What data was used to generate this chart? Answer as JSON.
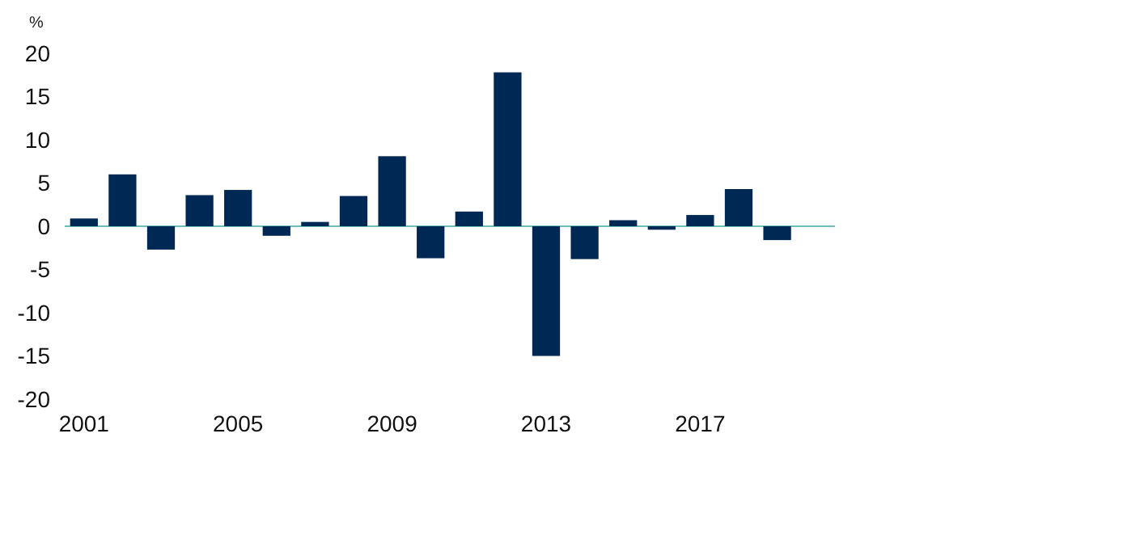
{
  "chart_data": {
    "type": "bar",
    "ylabel": "%",
    "categories": [
      "2001",
      null,
      null,
      null,
      "2005",
      null,
      null,
      null,
      "2009",
      null,
      null,
      null,
      "2013",
      null,
      null,
      null,
      "2017",
      null,
      null,
      null
    ],
    "values": [
      0.9,
      6.0,
      -2.7,
      3.6,
      4.2,
      -1.1,
      0.5,
      3.5,
      8.1,
      -3.7,
      1.7,
      17.8,
      -15,
      -3.8,
      0.7,
      -0.4,
      1.3,
      4.3,
      -1.6,
      null
    ],
    "color": "#002855",
    "ylim": [
      -20,
      20
    ],
    "yticks": [
      -20,
      -15,
      -10,
      -5,
      0,
      5,
      10,
      15,
      20
    ],
    "ref_lines": [
      {
        "axis": "y",
        "value": 0,
        "color": "#6cbfb6"
      }
    ],
    "grid": false
  }
}
